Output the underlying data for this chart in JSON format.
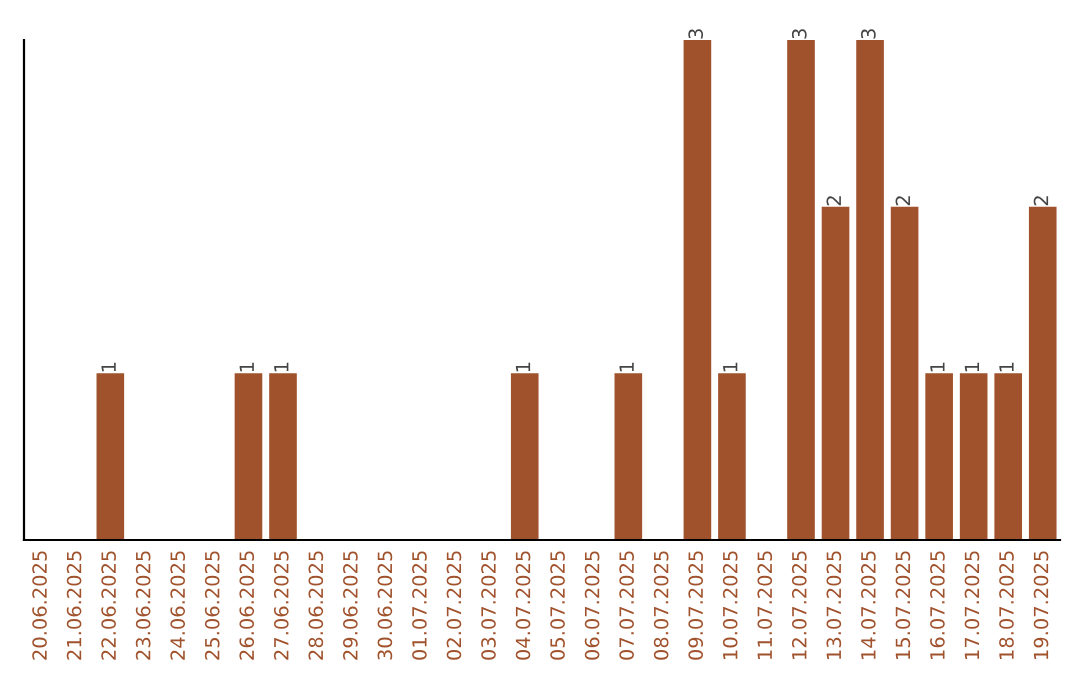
{
  "chart_data": {
    "type": "bar",
    "categories": [
      "20.06.2025",
      "21.06.2025",
      "22.06.2025",
      "23.06.2025",
      "24.06.2025",
      "25.06.2025",
      "26.06.2025",
      "27.06.2025",
      "28.06.2025",
      "29.06.2025",
      "30.06.2025",
      "01.07.2025",
      "02.07.2025",
      "03.07.2025",
      "04.07.2025",
      "05.07.2025",
      "06.07.2025",
      "07.07.2025",
      "08.07.2025",
      "09.07.2025",
      "10.07.2025",
      "11.07.2025",
      "12.07.2025",
      "13.07.2025",
      "14.07.2025",
      "15.07.2025",
      "16.07.2025",
      "17.07.2025",
      "18.07.2025",
      "19.07.2025"
    ],
    "values": [
      0,
      0,
      1,
      0,
      0,
      0,
      1,
      1,
      0,
      0,
      0,
      0,
      0,
      0,
      1,
      0,
      0,
      1,
      0,
      3,
      1,
      0,
      3,
      2,
      3,
      2,
      1,
      1,
      1,
      2
    ],
    "value_labels": [
      null,
      null,
      "1",
      null,
      null,
      null,
      "1",
      "1",
      null,
      null,
      null,
      null,
      null,
      null,
      "1",
      null,
      null,
      "1",
      null,
      "3",
      "1",
      null,
      "3",
      "2",
      "3",
      "2",
      "1",
      "1",
      "1",
      "2"
    ],
    "color": "#a0522d",
    "ylim": [
      0,
      3
    ],
    "tick_labels": "x",
    "grid": false,
    "legend": false
  }
}
